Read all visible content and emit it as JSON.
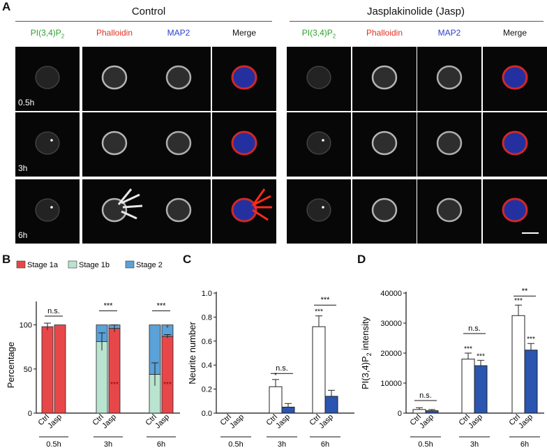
{
  "panelA": {
    "letter": "A",
    "groups": [
      {
        "title": "Control",
        "columns": [
          {
            "label_main": "PI(3,4)P",
            "label_sub": "2",
            "color": "#2aa12a"
          },
          {
            "label_main": "Phalloidin",
            "label_sub": "",
            "color": "#e03020"
          },
          {
            "label_main": "MAP2",
            "label_sub": "",
            "color": "#2a3fd0"
          },
          {
            "label_main": "Merge",
            "label_sub": "",
            "color": "#111111"
          }
        ]
      },
      {
        "title": "Jasplakinolide (Jasp)",
        "columns": [
          {
            "label_main": "PI(3,4)P",
            "label_sub": "2",
            "color": "#2aa12a"
          },
          {
            "label_main": "Phalloidin",
            "label_sub": "",
            "color": "#e03020"
          },
          {
            "label_main": "MAP2",
            "label_sub": "",
            "color": "#2a3fd0"
          },
          {
            "label_main": "Merge",
            "label_sub": "",
            "color": "#111111"
          }
        ]
      }
    ],
    "times": [
      "0.5h",
      "3h",
      "6h"
    ]
  },
  "chart_data": [
    {
      "id": "B",
      "type": "bar",
      "stacked": true,
      "ylabel": "Percentage",
      "yticks": [
        0,
        50,
        100
      ],
      "ylim": [
        0,
        125
      ],
      "legend": [
        {
          "name": "Stage 1a",
          "color": "#e8474a"
        },
        {
          "name": "Stage 1b",
          "color": "#b9e4cf"
        },
        {
          "name": "Stage 2",
          "color": "#5aa2d8"
        }
      ],
      "groups": [
        "0.5h",
        "3h",
        "6h"
      ],
      "bar_labels": [
        "Ctrl",
        "Jasp"
      ],
      "bars": [
        {
          "group": "0.5h",
          "label": "Ctrl",
          "stage1a": 98,
          "stage1b": 0,
          "stage2": 0,
          "err": 4
        },
        {
          "group": "0.5h",
          "label": "Jasp",
          "stage1a": 100,
          "stage1b": 0,
          "stage2": 0,
          "err": 0
        },
        {
          "group": "3h",
          "label": "Ctrl",
          "stage1a": 0,
          "stage1b": 81,
          "stage2": 19,
          "err": 10
        },
        {
          "group": "3h",
          "label": "Jasp",
          "stage1a": 96,
          "stage1b": 0,
          "stage2": 4,
          "err": 4
        },
        {
          "group": "6h",
          "label": "Ctrl",
          "stage1a": 0,
          "stage1b": 44,
          "stage2": 56,
          "err": 13
        },
        {
          "group": "6h",
          "label": "Jasp",
          "stage1a": 87,
          "stage1b": 0,
          "stage2": 13,
          "err": 2
        }
      ],
      "annotations": [
        {
          "group": "0.5h",
          "text": "n.s."
        },
        {
          "group": "3h",
          "text": "***"
        },
        {
          "group": "6h",
          "text": "***"
        }
      ],
      "inner_annotations": [
        "***",
        "***",
        "*"
      ]
    },
    {
      "id": "C",
      "type": "bar",
      "ylabel": "Neurite number",
      "yticks": [
        0.0,
        0.2,
        0.4,
        0.6,
        0.8,
        1.0
      ],
      "ylim": [
        0,
        1.0
      ],
      "groups": [
        "0.5h",
        "3h",
        "6h"
      ],
      "bar_labels": [
        "Ctrl",
        "Jasp"
      ],
      "series": [
        {
          "name": "Ctrl",
          "values": [
            0,
            0.22,
            0.72
          ],
          "errors": [
            0,
            0.06,
            0.09
          ],
          "star": [
            "",
            "*",
            "***"
          ]
        },
        {
          "name": "Jasp",
          "values": [
            0,
            0.05,
            0.14
          ],
          "errors": [
            0,
            0.03,
            0.05
          ],
          "star": [
            "",
            "",
            ""
          ]
        }
      ],
      "annotations": [
        {
          "group": "3h",
          "text": "n.s."
        },
        {
          "group": "6h",
          "text": "***"
        }
      ]
    },
    {
      "id": "D",
      "type": "bar",
      "ylabel_main": "PI(3,4)P",
      "ylabel_sub": "2",
      "ylabel_tail": " intensity",
      "yticks": [
        0,
        10000,
        20000,
        30000,
        40000
      ],
      "ylim": [
        0,
        40000
      ],
      "groups": [
        "0.5h",
        "3h",
        "6h"
      ],
      "bar_labels": [
        "Ctrl",
        "Jasp"
      ],
      "series": [
        {
          "name": "Ctrl",
          "values": [
            1200,
            18000,
            32500
          ],
          "errors": [
            600,
            2000,
            3500
          ],
          "star": [
            "",
            "***",
            "***"
          ]
        },
        {
          "name": "Jasp",
          "values": [
            800,
            15800,
            21000
          ],
          "errors": [
            400,
            1800,
            2200
          ],
          "star": [
            "",
            "***",
            "***"
          ]
        }
      ],
      "annotations": [
        {
          "group": "0.5h",
          "text": "n.s."
        },
        {
          "group": "3h",
          "text": "n.s."
        },
        {
          "group": "6h",
          "text": "**"
        }
      ]
    }
  ],
  "colors": {
    "ctrl_fill": "#ffffff",
    "jasp_fill": "#2a55b0",
    "axis": "#111111",
    "star_red": "#8b0000"
  }
}
